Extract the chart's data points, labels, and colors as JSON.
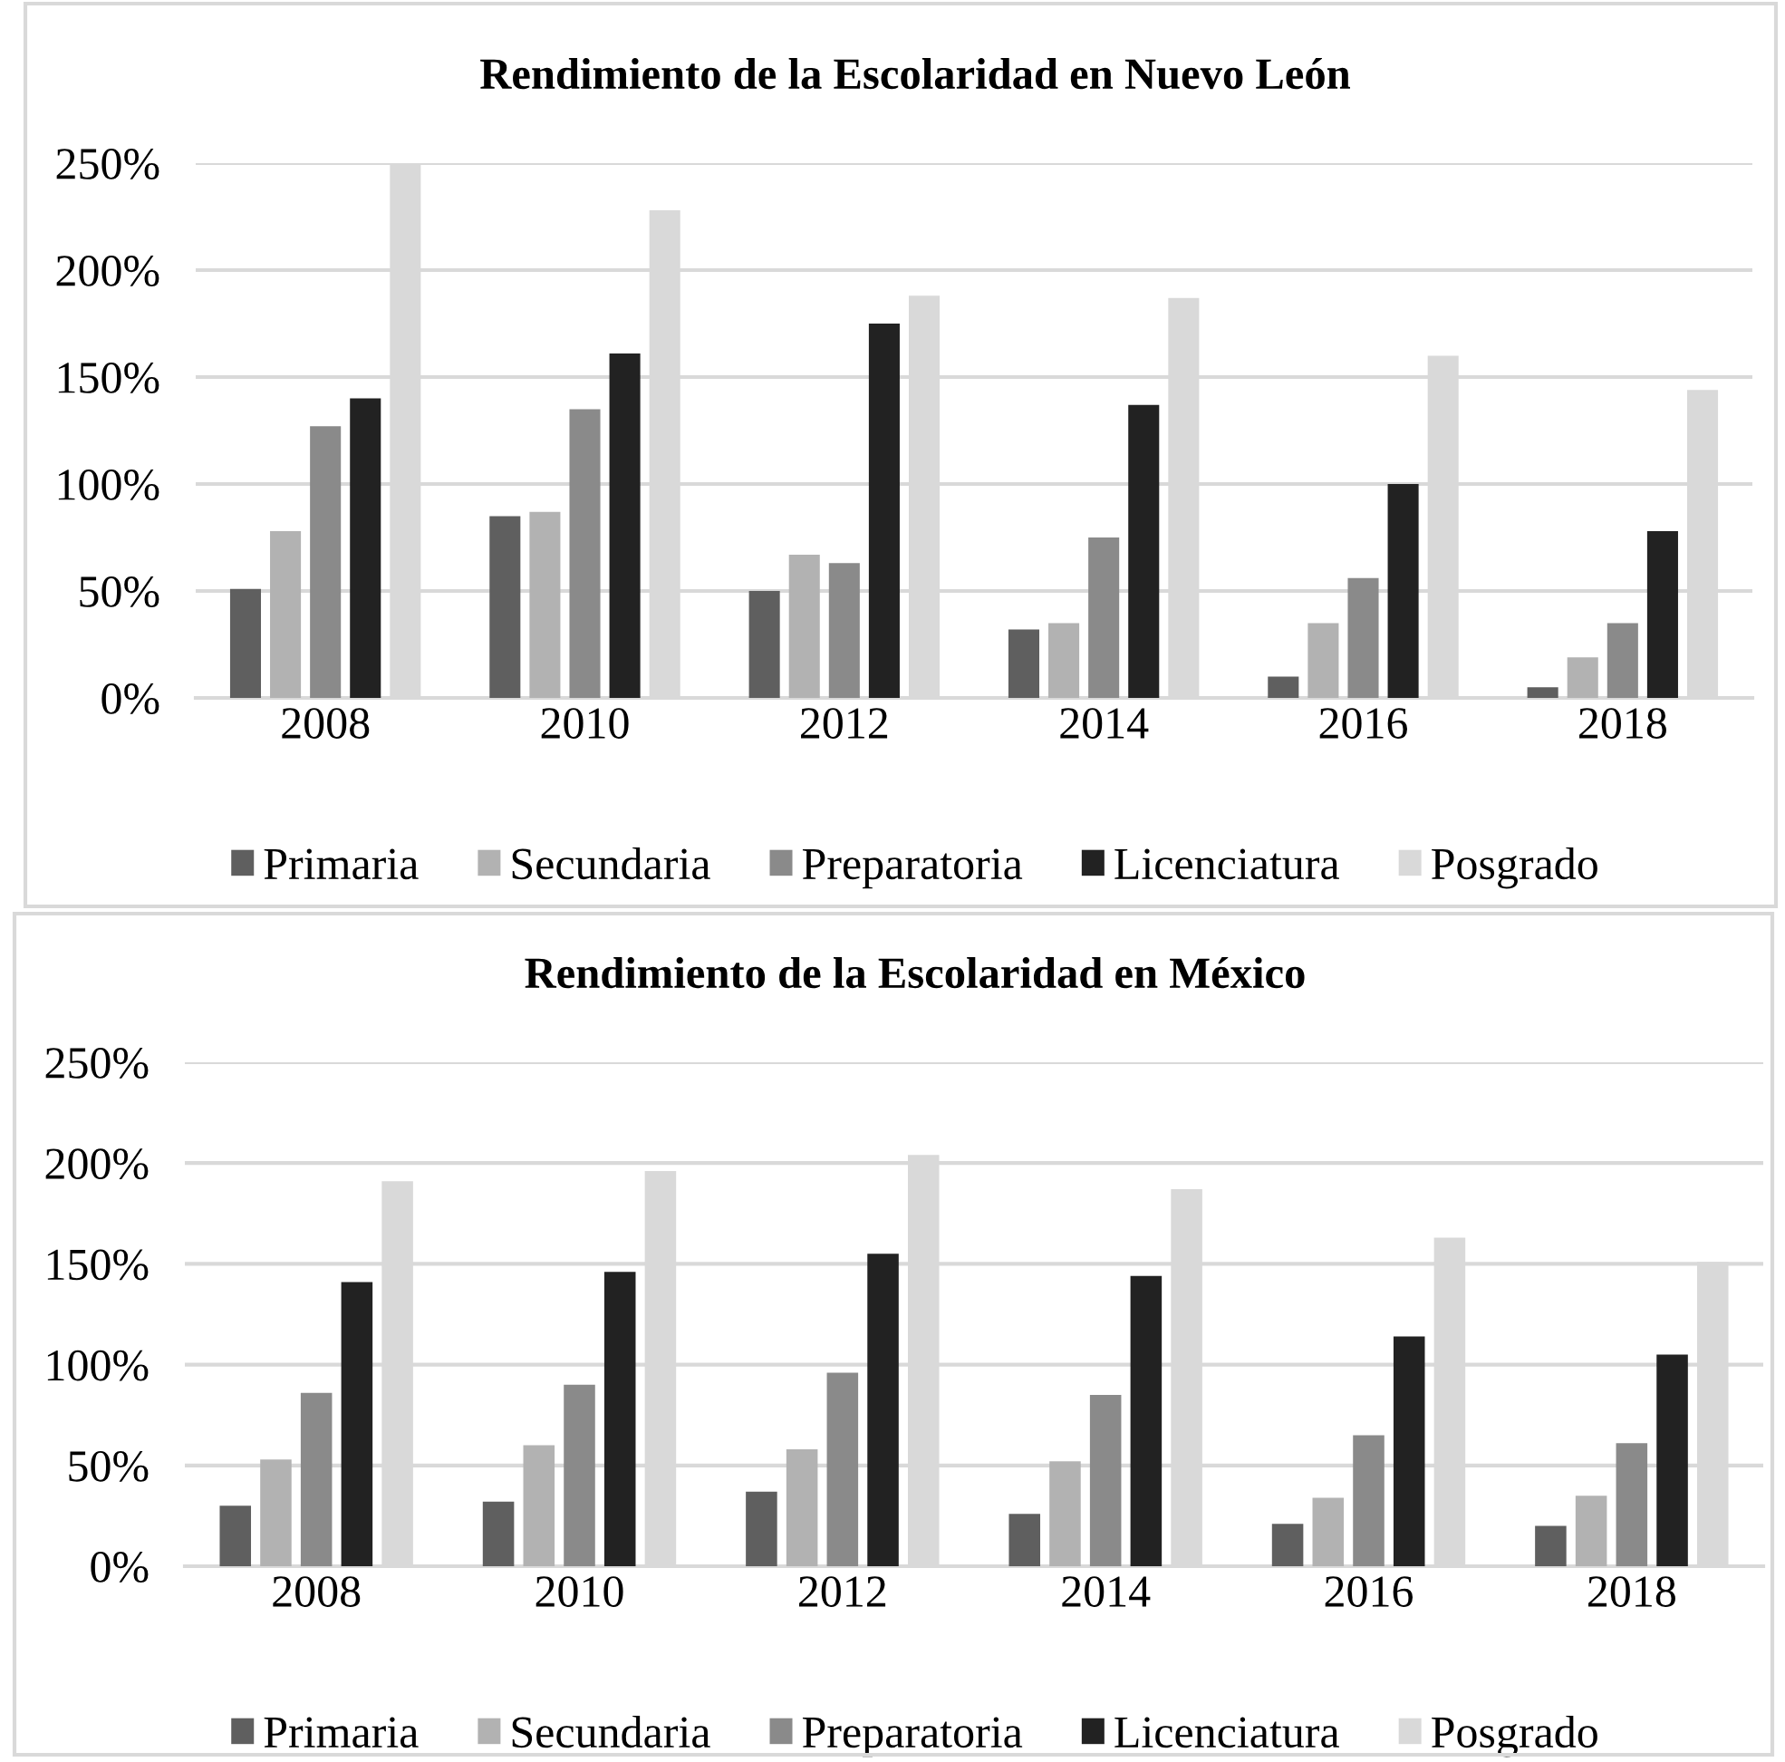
{
  "chart_data": [
    {
      "type": "bar",
      "title": "Rendimiento de la Escolaridad en Nuevo León",
      "categories": [
        "2008",
        "2010",
        "2012",
        "2014",
        "2016",
        "2018"
      ],
      "ylim": [
        0,
        250
      ],
      "yticks": [
        {
          "value": 0,
          "label": "0%"
        },
        {
          "value": 50,
          "label": "50%"
        },
        {
          "value": 100,
          "label": "100%"
        },
        {
          "value": 150,
          "label": "150%"
        },
        {
          "value": 200,
          "label": "200%"
        },
        {
          "value": 250,
          "label": "250%"
        }
      ],
      "grid": "y",
      "legend": "bottom",
      "series": [
        {
          "name": "Primaria",
          "color": "#5f5f5f",
          "values": [
            51,
            85,
            50,
            32,
            10,
            5
          ]
        },
        {
          "name": "Secundaria",
          "color": "#b2b2b2",
          "values": [
            78,
            87,
            67,
            35,
            35,
            19
          ]
        },
        {
          "name": "Preparatoria",
          "color": "#8a8a8a",
          "values": [
            127,
            135,
            63,
            75,
            56,
            35
          ]
        },
        {
          "name": "Licenciatura",
          "color": "#222222",
          "values": [
            140,
            161,
            175,
            137,
            100,
            78
          ]
        },
        {
          "name": "Posgrado",
          "color": "#d9d9d9",
          "values": [
            250,
            228,
            188,
            187,
            160,
            144
          ]
        }
      ]
    },
    {
      "type": "bar",
      "title": "Rendimiento de la Escolaridad en México",
      "categories": [
        "2008",
        "2010",
        "2012",
        "2014",
        "2016",
        "2018"
      ],
      "ylim": [
        0,
        250
      ],
      "yticks": [
        {
          "value": 0,
          "label": "0%"
        },
        {
          "value": 50,
          "label": "50%"
        },
        {
          "value": 100,
          "label": "100%"
        },
        {
          "value": 150,
          "label": "150%"
        },
        {
          "value": 200,
          "label": "200%"
        },
        {
          "value": 250,
          "label": "250%"
        }
      ],
      "grid": "y",
      "legend": "bottom",
      "series": [
        {
          "name": "Primaria",
          "color": "#5f5f5f",
          "values": [
            30,
            32,
            37,
            26,
            21,
            20
          ]
        },
        {
          "name": "Secundaria",
          "color": "#b2b2b2",
          "values": [
            53,
            60,
            58,
            52,
            34,
            35
          ]
        },
        {
          "name": "Preparatoria",
          "color": "#8a8a8a",
          "values": [
            86,
            90,
            96,
            85,
            65,
            61
          ]
        },
        {
          "name": "Licenciatura",
          "color": "#222222",
          "values": [
            141,
            146,
            155,
            144,
            114,
            105
          ]
        },
        {
          "name": "Posgrado",
          "color": "#d9d9d9",
          "values": [
            191,
            196,
            204,
            187,
            163,
            151
          ]
        }
      ]
    }
  ]
}
